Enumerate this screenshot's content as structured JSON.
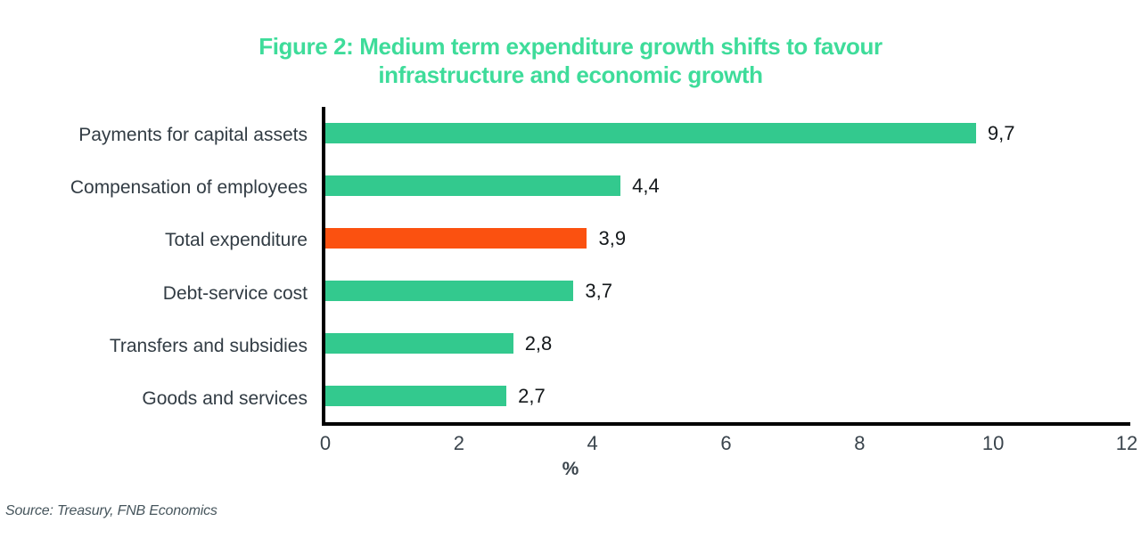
{
  "title": {
    "line1": "Figure 2: Medium term expenditure growth shifts to favour",
    "line2": "infrastructure and economic growth"
  },
  "source": "Source: Treasury, FNB Economics",
  "colors": {
    "title_green": "#3edc9a",
    "bar_green": "#33c98e",
    "bar_highlight_orange": "#fb5110",
    "axis_black": "#000000",
    "label_text": "#323c44"
  },
  "chart_data": {
    "type": "bar",
    "orientation": "horizontal",
    "title": "Figure 2: Medium term expenditure growth shifts to favour infrastructure and economic growth",
    "categories": [
      "Payments for capital assets",
      "Compensation of employees",
      "Total expenditure",
      "Debt-service cost",
      "Transfers and subsidies",
      "Goods and services"
    ],
    "values": [
      9.7,
      4.4,
      3.9,
      3.7,
      2.8,
      2.7
    ],
    "value_labels": [
      "9,7",
      "4,4",
      "3,9",
      "3,7",
      "2,8",
      "2,7"
    ],
    "bar_colors": [
      "#33c98e",
      "#33c98e",
      "#fb5110",
      "#33c98e",
      "#33c98e",
      "#33c98e"
    ],
    "highlight_index": 2,
    "highlighted_category": "Total expenditure",
    "xlabel": "%",
    "ylabel": "",
    "x_ticks": [
      0,
      2,
      4,
      6,
      8,
      10,
      12
    ],
    "xlim": [
      0,
      12
    ],
    "grid": false,
    "legend": false
  }
}
